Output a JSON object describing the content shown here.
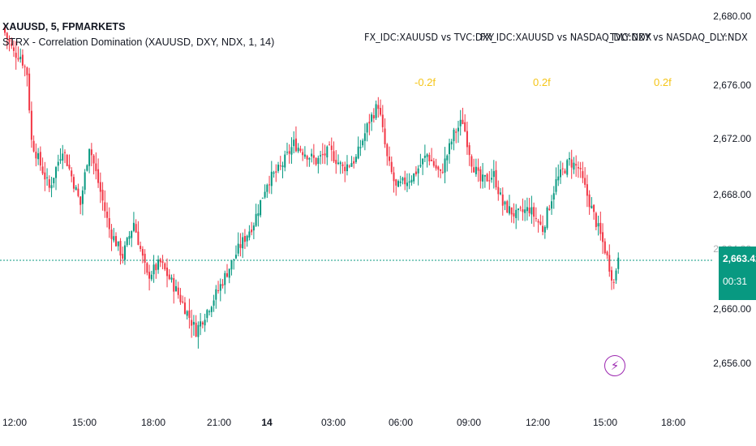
{
  "legend": {
    "symbol": "XAUUSD, 5, FPMARKETS",
    "indicator": "STRX - Correlation Domination (XAUUSD, DXY, NDX, 1, 14)"
  },
  "correlation_headers": [
    "FX_IDC:XAUUSD vs TVC:DXY",
    "FX_IDC:XAUUSD vs NASDAQ_DLY:NDX",
    "TVC:DXY vs NASDAQ_DLY:NDX"
  ],
  "correlation_values": [
    "-0.2f",
    "0.2f",
    "0.2f"
  ],
  "last_price": {
    "price": "2,663.42",
    "countdown": "00:31"
  },
  "price_ticks": [
    "2,680.00",
    "2,676.00",
    "2,672.00",
    "2,668.00",
    "2,664.00",
    "2,660.00",
    "2,656.00"
  ],
  "time_ticks": [
    "12:00",
    "15:00",
    "18:00",
    "21:00",
    "14",
    "03:00",
    "06:00",
    "09:00",
    "12:00",
    "15:00",
    "18:00"
  ],
  "colors": {
    "up": "#089981",
    "down": "#f23645",
    "correlation_text": "#f5c518",
    "price_line": "#089981",
    "event_icon": "#9c27b0"
  },
  "icons": {
    "event": "lightning-icon"
  },
  "chart_data": {
    "type": "candlestick",
    "symbol": "XAUUSD",
    "timeframe": "5",
    "ylim": [
      2655,
      2681
    ],
    "close_path": [
      [
        0,
        2679.5
      ],
      [
        4,
        2678.0
      ],
      [
        7,
        2677.8
      ],
      [
        10,
        2676.5
      ],
      [
        12,
        2671.5
      ],
      [
        20,
        2668.0
      ],
      [
        26,
        2671.0
      ],
      [
        34,
        2666.8
      ],
      [
        38,
        2671.2
      ],
      [
        47,
        2665.0
      ],
      [
        53,
        2663.0
      ],
      [
        58,
        2665.5
      ],
      [
        64,
        2661.5
      ],
      [
        70,
        2662.5
      ],
      [
        77,
        2660.5
      ],
      [
        86,
        2657.5
      ],
      [
        96,
        2660.5
      ],
      [
        105,
        2663.5
      ],
      [
        112,
        2665.5
      ],
      [
        118,
        2668.5
      ],
      [
        124,
        2669.5
      ],
      [
        130,
        2671.3
      ],
      [
        140,
        2670.0
      ],
      [
        146,
        2670.8
      ],
      [
        152,
        2669.5
      ],
      [
        158,
        2670.2
      ],
      [
        164,
        2673.0
      ],
      [
        168,
        2674.2
      ],
      [
        172,
        2670.2
      ],
      [
        176,
        2668.0
      ],
      [
        184,
        2669.0
      ],
      [
        190,
        2670.5
      ],
      [
        196,
        2669.0
      ],
      [
        202,
        2672.0
      ],
      [
        206,
        2673.0
      ],
      [
        210,
        2670.0
      ],
      [
        214,
        2668.5
      ],
      [
        220,
        2669.0
      ],
      [
        224,
        2666.8
      ],
      [
        230,
        2666.0
      ],
      [
        236,
        2666.5
      ],
      [
        242,
        2665.0
      ],
      [
        248,
        2668.5
      ],
      [
        254,
        2670.0
      ],
      [
        258,
        2669.5
      ],
      [
        264,
        2666.5
      ],
      [
        270,
        2663.5
      ],
      [
        274,
        2661.0
      ],
      [
        276,
        2663.2
      ]
    ]
  }
}
